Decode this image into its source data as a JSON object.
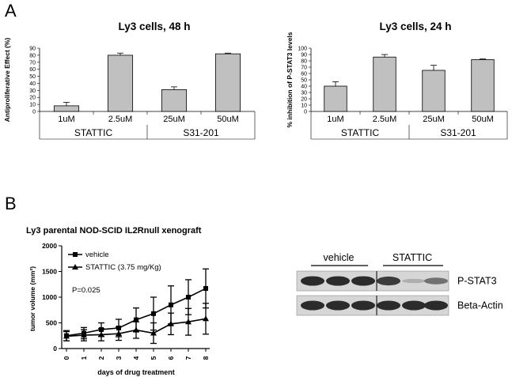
{
  "panels": {
    "a": "A",
    "b": "B"
  },
  "chart_data": [
    {
      "type": "bar",
      "title": "Ly3 cells, 48 h",
      "ylabel": "Antiproliferative Effect (%)",
      "ylim": [
        0,
        90
      ],
      "yticks": [
        0,
        10,
        20,
        30,
        40,
        50,
        60,
        70,
        80,
        90
      ],
      "categories": [
        "1uM",
        "2.5uM",
        "25uM",
        "50uM"
      ],
      "groups": [
        {
          "label": "STATTIC",
          "categories": [
            "1uM",
            "2.5uM"
          ]
        },
        {
          "label": "S31-201",
          "categories": [
            "25uM",
            "50uM"
          ]
        }
      ],
      "values": [
        8,
        80,
        31,
        82
      ],
      "errors": [
        5,
        3,
        4,
        1
      ],
      "bar_color": "#c0c0c0"
    },
    {
      "type": "bar",
      "title": "Ly3 cells, 24 h",
      "ylabel": "% inhibition of P-STAT3 levels",
      "ylim": [
        0,
        100
      ],
      "yticks": [
        0,
        10,
        20,
        30,
        40,
        50,
        60,
        70,
        80,
        90,
        100
      ],
      "categories": [
        "1uM",
        "2.5uM",
        "25uM",
        "50uM"
      ],
      "groups": [
        {
          "label": "STATTIC",
          "categories": [
            "1uM",
            "2.5uM"
          ]
        },
        {
          "label": "S31-201",
          "categories": [
            "25uM",
            "50uM"
          ]
        }
      ],
      "values": [
        40,
        86,
        65,
        82
      ],
      "errors": [
        7,
        4,
        8,
        1
      ],
      "bar_color": "#c0c0c0"
    },
    {
      "type": "line",
      "title": "Ly3 parental NOD-SCID IL2Rnull xenograft",
      "xlabel": "days of drug treatment",
      "ylabel": "tumor volume (mm³)",
      "x": [
        0,
        1,
        2,
        3,
        4,
        5,
        6,
        7,
        8
      ],
      "xticks": [
        "0",
        "1",
        "2",
        "3",
        "4",
        "5",
        "6",
        "7",
        "8"
      ],
      "ylim": [
        0,
        2000
      ],
      "yticks": [
        "0",
        "500",
        "1000",
        "1500",
        "2000"
      ],
      "annotation": "P=0.025",
      "series": [
        {
          "name": "vehicle",
          "marker": "square",
          "values": [
            250,
            300,
            370,
            400,
            560,
            680,
            850,
            1000,
            1170
          ],
          "errors": [
            100,
            110,
            130,
            170,
            230,
            320,
            370,
            340,
            380
          ]
        },
        {
          "name": "STATTIC (3.75 mg/Kg)",
          "marker": "triangle",
          "values": [
            240,
            260,
            270,
            290,
            360,
            300,
            480,
            520,
            580
          ],
          "errors": [
            90,
            110,
            120,
            130,
            160,
            200,
            210,
            260,
            300
          ]
        }
      ]
    }
  ],
  "western_blot": {
    "groups": [
      "vehicle",
      "STATTIC"
    ],
    "rows": [
      {
        "label": "P-STAT3",
        "intensities": [
          0.9,
          0.9,
          0.9,
          0.8,
          0.15,
          0.5
        ]
      },
      {
        "label": "Beta-Actin",
        "intensities": [
          0.9,
          0.9,
          0.9,
          0.9,
          0.9,
          0.9
        ]
      }
    ]
  }
}
